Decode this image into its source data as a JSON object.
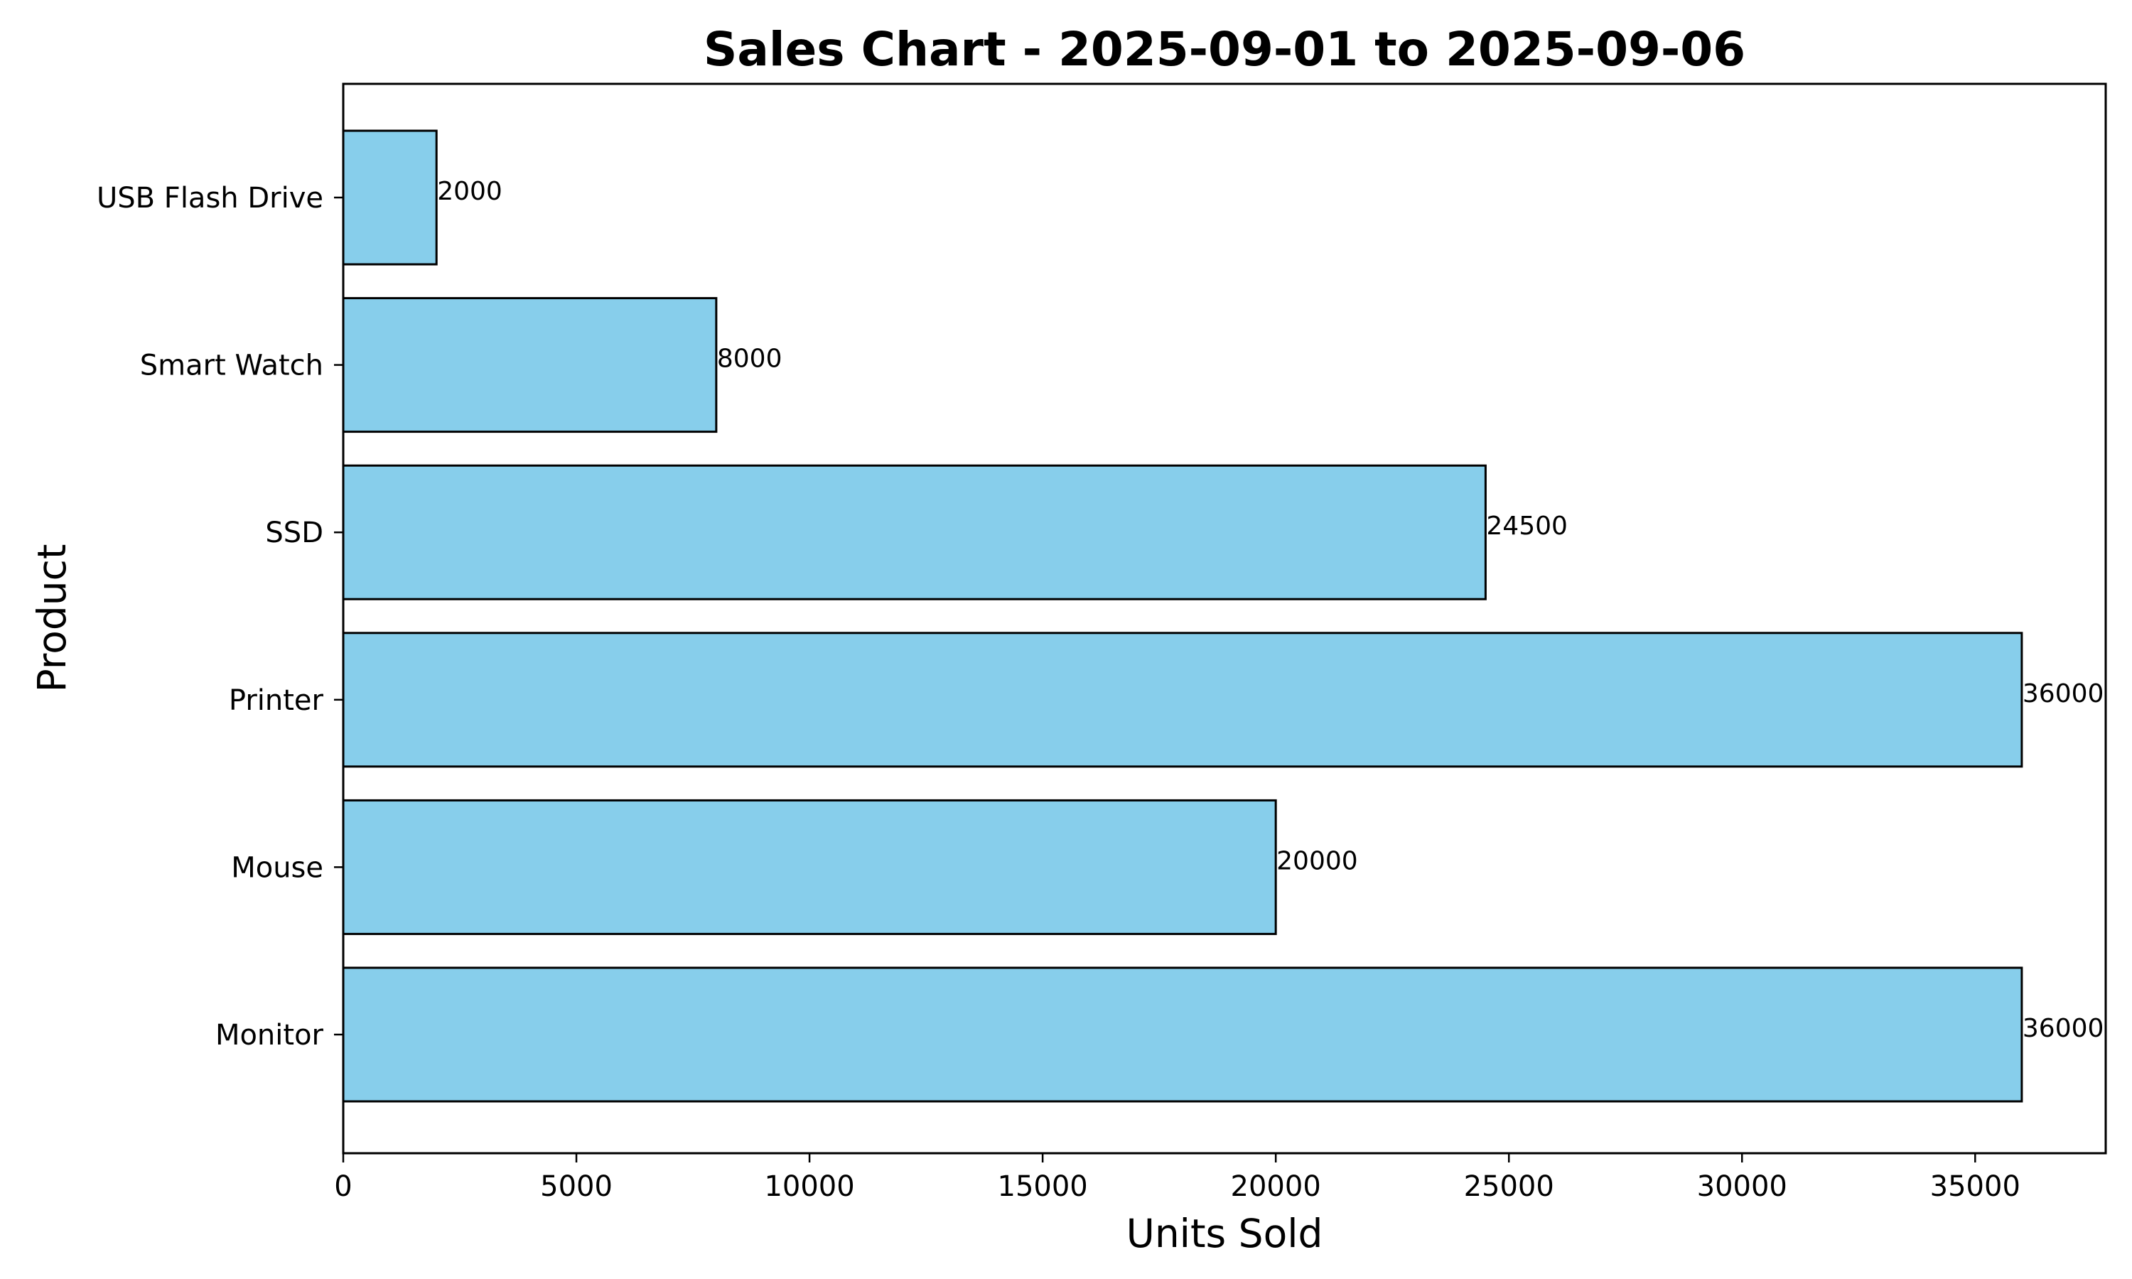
{
  "chart_data": {
    "type": "bar",
    "orientation": "horizontal",
    "title": "Sales Chart - 2025-09-01 to 2025-09-06",
    "xlabel": "Units Sold",
    "ylabel": "Product",
    "categories": [
      "Monitor",
      "Mouse",
      "Printer",
      "SSD",
      "Smart Watch",
      "USB Flash Drive"
    ],
    "values": [
      36000,
      20000,
      36000,
      24500,
      8000,
      2000
    ],
    "data_labels": [
      "36000",
      "20000",
      "36000",
      "24500",
      "8000",
      "2000"
    ],
    "xlim": [
      0,
      37800
    ],
    "x_ticks": [
      0,
      5000,
      10000,
      15000,
      20000,
      25000,
      30000,
      35000
    ],
    "x_tick_labels": [
      "0",
      "5000",
      "10000",
      "15000",
      "20000",
      "25000",
      "30000",
      "35000"
    ],
    "grid": false,
    "bar_color": "#87CEEB",
    "bar_edge_color": "#000000"
  }
}
